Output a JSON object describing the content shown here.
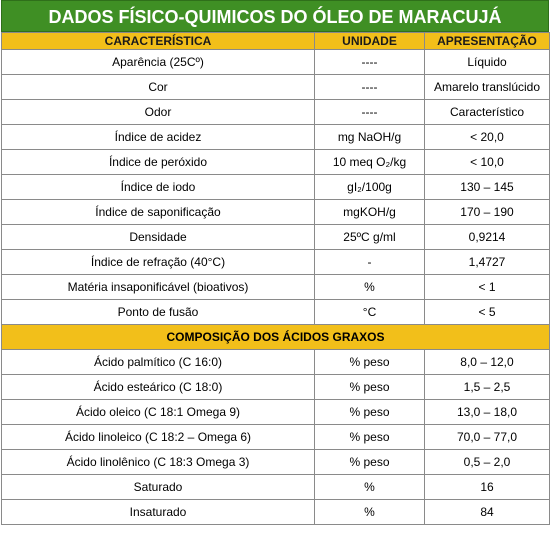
{
  "title": "DADOS FÍSICO-QUIMICOS DO ÓLEO DE MARACUJÁ",
  "headers": [
    "CARACTERÍSTICA",
    "UNIDADE",
    "APRESENTAÇÃO"
  ],
  "rows": [
    [
      "Aparência (25Cº)",
      "----",
      "Líquido"
    ],
    [
      "Cor",
      "----",
      "Amarelo translúcido"
    ],
    [
      "Odor",
      "----",
      "Característico"
    ],
    [
      "Índice de acidez",
      "mg NaOH/g",
      "< 20,0"
    ],
    [
      "Índice de peróxido",
      "10 meq O₂/kg",
      "< 10,0"
    ],
    [
      "Índice de iodo",
      "gI₂/100g",
      "130 – 145"
    ],
    [
      "Índice de saponificação",
      "mgKOH/g",
      "170 – 190"
    ],
    [
      "Densidade",
      "25ºC g/ml",
      "0,9214"
    ],
    [
      "Índice de refração (40°C)",
      "-",
      "1,4727"
    ],
    [
      "Matéria insaponificável (bioativos)",
      "%",
      "< 1"
    ],
    [
      "Ponto de fusão",
      "°C",
      "< 5"
    ]
  ],
  "section_title": "COMPOSIÇÃO DOS ÁCIDOS GRAXOS",
  "fatty_rows": [
    [
      "Ácido palmítico (C 16:0)",
      "% peso",
      "8,0 – 12,0"
    ],
    [
      "Ácido esteárico (C 18:0)",
      "% peso",
      "1,5 – 2,5"
    ],
    [
      "Ácido oleico (C 18:1 Omega 9)",
      "% peso",
      "13,0 – 18,0"
    ],
    [
      "Ácido linoleico (C 18:2 – Omega 6)",
      "% peso",
      "70,0 – 77,0"
    ],
    [
      "Ácido linolênico (C 18:3 Omega 3)",
      "% peso",
      "0,5 – 2,0"
    ],
    [
      "Saturado",
      "%",
      "16"
    ],
    [
      "Insaturado",
      "%",
      "84"
    ]
  ],
  "colors": {
    "title_bg": "#3f8f24",
    "header_bg": "#f2bf1a"
  }
}
